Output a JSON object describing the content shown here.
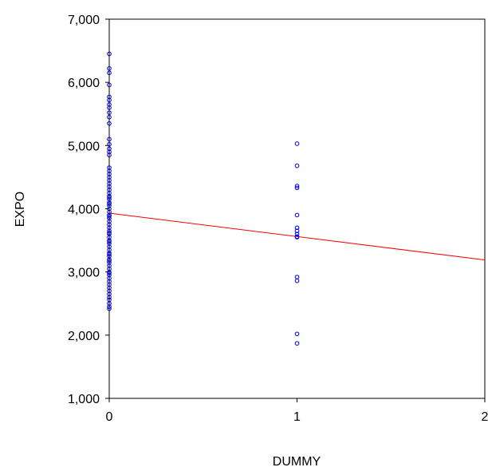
{
  "chart_data": {
    "type": "scatter",
    "xlabel": "DUMMY",
    "ylabel": "EXPO",
    "xlim": [
      0,
      2
    ],
    "ylim": [
      1000,
      7000
    ],
    "xticks": [
      0,
      1,
      2
    ],
    "xtick_labels": [
      "0",
      "1",
      "2"
    ],
    "yticks": [
      1000,
      2000,
      3000,
      4000,
      5000,
      6000,
      7000
    ],
    "ytick_labels": [
      "1,000",
      "2,000",
      "3,000",
      "4,000",
      "5,000",
      "6,000",
      "7,000"
    ],
    "grid": false,
    "point_color": "#0000cc",
    "line_color": "#ff0000",
    "series": [
      {
        "x": [
          0,
          0,
          0,
          0,
          0,
          0,
          0,
          0,
          0,
          0,
          0,
          0,
          0,
          0,
          0,
          0,
          0,
          0,
          0,
          0,
          0,
          0,
          0,
          0,
          0,
          0,
          0,
          0,
          0,
          0,
          0,
          0,
          0,
          0,
          0,
          0,
          0,
          0,
          0,
          0,
          0,
          0,
          0,
          0,
          0,
          0,
          0,
          0,
          0,
          0,
          0,
          0,
          0,
          0,
          0,
          0,
          0,
          0,
          0,
          0,
          0,
          0,
          0,
          0,
          0,
          0,
          0,
          0,
          0,
          0,
          1,
          1,
          1,
          1,
          1,
          1,
          1,
          1,
          1,
          1,
          1,
          1,
          1,
          1
        ],
        "y": [
          6450,
          6220,
          6150,
          5960,
          5770,
          5720,
          5650,
          5600,
          5520,
          5450,
          5350,
          5100,
          5020,
          4950,
          4900,
          4850,
          4650,
          4600,
          4550,
          4500,
          4450,
          4400,
          4350,
          4300,
          4250,
          4200,
          4150,
          4100,
          4050,
          4000,
          3950,
          3900,
          3850,
          3800,
          3750,
          3700,
          3650,
          3600,
          3550,
          3500,
          3450,
          3400,
          3350,
          3300,
          3250,
          3200,
          3150,
          3100,
          3050,
          3000,
          2950,
          2900,
          2850,
          2800,
          2750,
          2700,
          2650,
          2600,
          2500,
          2450,
          2420,
          4180,
          4080,
          3880,
          3620,
          3480,
          3280,
          3180,
          2980,
          2560,
          5030,
          4680,
          4360,
          4330,
          3900,
          3700,
          3650,
          3600,
          3560,
          2920,
          2860,
          2020,
          1870,
          3550
        ]
      }
    ],
    "fit_line": {
      "x": [
        0,
        2
      ],
      "y": [
        3930,
        3190
      ]
    }
  }
}
